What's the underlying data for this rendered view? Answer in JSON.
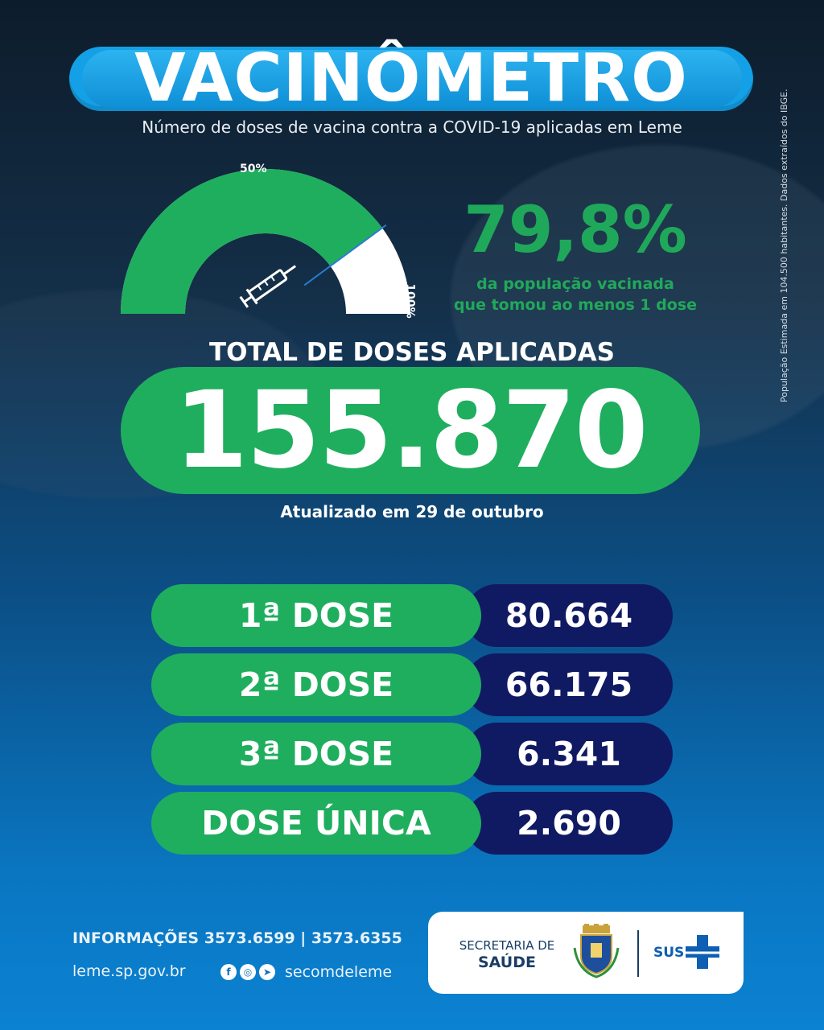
{
  "header": {
    "title": "VACINÔMETRO",
    "subtitle": "Número de doses de vacina contra a COVID-19 aplicadas em Leme"
  },
  "side_note": "População Estimada em 104.500 habitantes. Dados extraídos do IBGE.",
  "gauge": {
    "label_mid": "50%",
    "label_max": "100%",
    "value_fraction": 0.798,
    "fill_color": "#1fae5e",
    "track_color": "#ffffff"
  },
  "headline": {
    "percent": "79,8%",
    "caption_line1": "da população vacinada",
    "caption_line2": "que tomou ao menos 1 dose"
  },
  "total": {
    "label": "TOTAL DE DOSES APLICADAS",
    "value": "155.870",
    "updated": "Atualizado em 29 de outubro"
  },
  "doses": [
    {
      "label": "1ª DOSE",
      "value": "80.664"
    },
    {
      "label": "2ª DOSE",
      "value": "66.175"
    },
    {
      "label": "3ª DOSE",
      "value": "6.341"
    },
    {
      "label": "DOSE ÚNICA",
      "value": "2.690"
    }
  ],
  "footer": {
    "info": "INFORMAÇÕES 3573.6599  |  3573.6355",
    "site": "leme.sp.gov.br",
    "social_icons": [
      "facebook-icon",
      "instagram-icon",
      "telegram-icon"
    ],
    "social_handle": "secomdeleme",
    "secretaria_line1": "SECRETARIA DE",
    "secretaria_line2": "SAÚDE",
    "sus": "SUS"
  },
  "colors": {
    "green": "#1fae5e",
    "navy": "#101a63",
    "title_blue": "#14a0e6"
  }
}
